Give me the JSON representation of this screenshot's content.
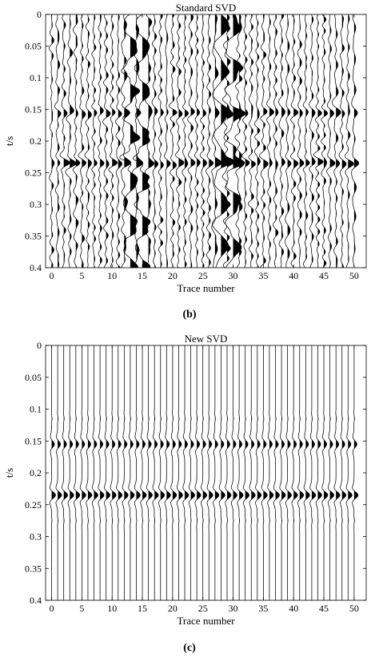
{
  "chart_data": [
    {
      "type": "wiggle",
      "title": "Standard SVD",
      "caption": "(b)",
      "xlabel": "Trace number",
      "ylabel": "t/s",
      "xlim": [
        -1,
        52
      ],
      "ylim": [
        0,
        0.4
      ],
      "y_reversed": true,
      "x_ticks": [
        0,
        5,
        10,
        15,
        20,
        25,
        30,
        35,
        40,
        45,
        50
      ],
      "y_ticks": [
        0,
        0.05,
        0.1,
        0.15,
        0.2,
        0.25,
        0.3,
        0.35,
        0.4
      ],
      "num_traces": 51,
      "fill": "positive lobes filled black",
      "events": [
        {
          "t": 0.155,
          "type": "horizontal reflection",
          "all_traces": true
        },
        {
          "t": 0.235,
          "type": "horizontal reflection",
          "all_traces": true
        }
      ],
      "coherent_noise_traces": [
        13,
        15,
        28,
        30
      ],
      "coherent_noise_period_s": 0.07,
      "random_noise": true
    },
    {
      "type": "wiggle",
      "title": "New SVD",
      "caption": "(c)",
      "xlabel": "Trace number",
      "ylabel": "t/s",
      "xlim": [
        -1,
        52
      ],
      "ylim": [
        0,
        0.4
      ],
      "y_reversed": true,
      "x_ticks": [
        0,
        5,
        10,
        15,
        20,
        25,
        30,
        35,
        40,
        45,
        50
      ],
      "y_ticks": [
        0,
        0.05,
        0.1,
        0.15,
        0.2,
        0.25,
        0.3,
        0.35,
        0.4
      ],
      "num_traces": 51,
      "fill": "positive lobes filled black",
      "events": [
        {
          "t": 0.155,
          "type": "horizontal reflection",
          "all_traces": true
        },
        {
          "t": 0.235,
          "type": "horizontal reflection",
          "all_traces": true
        }
      ],
      "coherent_noise_traces": [],
      "random_noise": false
    }
  ]
}
